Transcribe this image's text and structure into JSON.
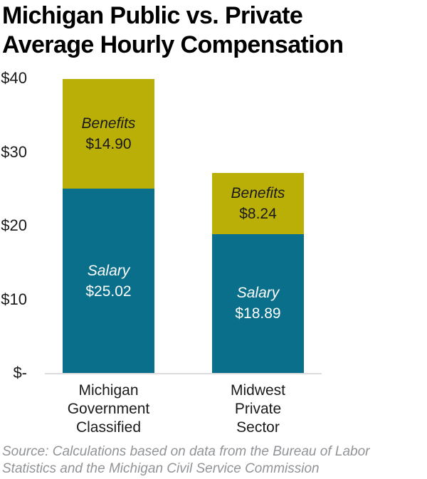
{
  "title": {
    "line1": "Michigan Public vs. Private",
    "line2": "Average Hourly Compensation"
  },
  "chart_data": {
    "type": "bar",
    "stacked": true,
    "title": "Michigan Public vs. Private Average Hourly Compensation",
    "categories": [
      [
        "Michigan",
        "Government",
        "Classified"
      ],
      [
        "Midwest",
        "Private",
        "Sector"
      ]
    ],
    "series": [
      {
        "name": "Salary",
        "values": [
          25.02,
          18.89
        ],
        "value_labels": [
          "$25.02",
          "$18.89"
        ],
        "color": "#096f8a",
        "text_color": "#ffffff"
      },
      {
        "name": "Benefits",
        "values": [
          14.9,
          8.24
        ],
        "value_labels": [
          "$14.90",
          "$8.24"
        ],
        "color": "#b9af06",
        "text_color": "#1a1a1a"
      }
    ],
    "ylim": [
      0,
      40
    ],
    "yticks": {
      "values": [
        0,
        10,
        20,
        30,
        40
      ],
      "labels": [
        "$-",
        "$10",
        "$20",
        "$30",
        "$40"
      ]
    },
    "grid": false,
    "legend_position": "none"
  },
  "source": {
    "line1": "Source: Calculations based on data from the Bureau of Labor",
    "line2": "Statistics and the Michigan Civil Service Commission"
  },
  "colors": {
    "salary": "#096f8a",
    "benefits": "#b9af06",
    "axis_line": "#dcdcdc",
    "source_text": "#919396",
    "title_text": "#000000"
  }
}
